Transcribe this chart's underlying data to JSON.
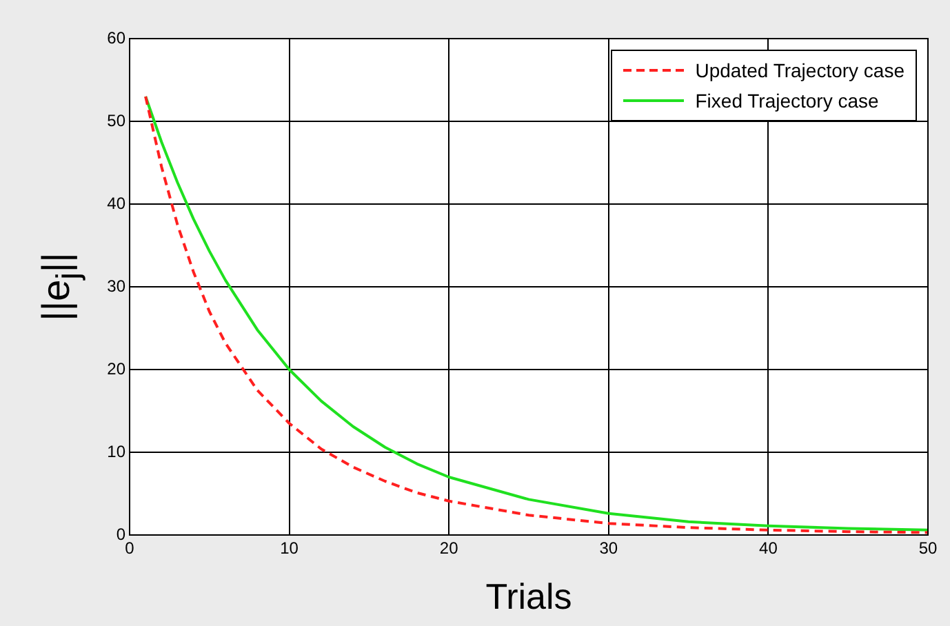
{
  "chart_data": {
    "type": "line",
    "xlabel": "Trials",
    "ylabel": "||e$_{j}$||",
    "xlim": [
      0,
      50
    ],
    "xticks": [
      0,
      10,
      20,
      30,
      40,
      50
    ],
    "ylim": [
      0,
      60
    ],
    "yticks": [
      0,
      10,
      20,
      30,
      40,
      50,
      60
    ],
    "grid": true,
    "legend": "top right",
    "series": [
      {
        "name": "Updated Trajectory case",
        "color": "#ff2020",
        "line_style": "dashed",
        "x": [
          1,
          2,
          3,
          4,
          5,
          6,
          8,
          10,
          12,
          14,
          16,
          18,
          20,
          25,
          30,
          35,
          40,
          45,
          50
        ],
        "values": [
          53,
          44.5,
          37.5,
          31.8,
          27,
          23.2,
          17.5,
          13.5,
          10.4,
          8.2,
          6.5,
          5.1,
          4.1,
          2.4,
          1.4,
          0.9,
          0.6,
          0.4,
          0.3
        ]
      },
      {
        "name": "Fixed Trajectory case",
        "color": "#20e020",
        "line_style": "solid",
        "x": [
          1,
          2,
          3,
          4,
          5,
          6,
          8,
          10,
          12,
          14,
          16,
          18,
          20,
          25,
          30,
          35,
          40,
          45,
          50
        ],
        "values": [
          53,
          47.5,
          42.6,
          38.2,
          34.3,
          30.8,
          24.8,
          20,
          16.2,
          13.1,
          10.6,
          8.6,
          7,
          4.3,
          2.6,
          1.6,
          1.1,
          0.8,
          0.6
        ]
      }
    ]
  }
}
